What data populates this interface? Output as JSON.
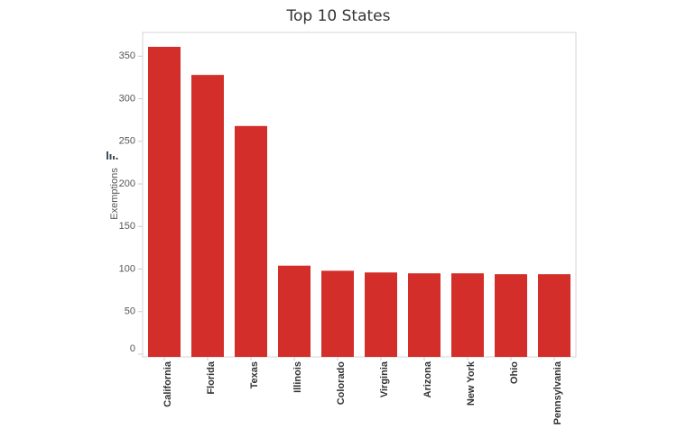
{
  "chart_data": {
    "type": "bar",
    "title": "Top 10 States",
    "xlabel": "",
    "ylabel": "Exemptions",
    "categories": [
      "California",
      "Florida",
      "Texas",
      "Illinois",
      "Colorado",
      "Virginia",
      "Arizona",
      "New York",
      "Ohio",
      "Pennsylvania"
    ],
    "values": [
      361,
      328,
      268,
      104,
      98,
      96,
      95,
      95,
      94,
      94
    ],
    "ylim": [
      0,
      380
    ],
    "yticks": [
      0,
      50,
      100,
      150,
      200,
      250,
      300,
      350
    ],
    "grid": false,
    "bar_color": "#d42e2a",
    "axis_icon": "bar-chart-icon"
  }
}
